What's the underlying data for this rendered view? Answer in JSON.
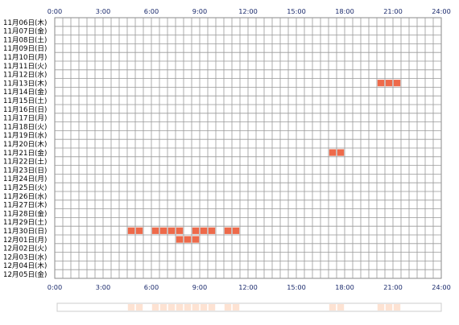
{
  "chart_data": {
    "type": "heatmap",
    "x_ticks": [
      "0:00",
      "3:00",
      "6:00",
      "9:00",
      "12:00",
      "15:00",
      "18:00",
      "21:00",
      "24:00"
    ],
    "x_range_hours": [
      0,
      24
    ],
    "grid": true,
    "y_labels": [
      "11月06日(木)",
      "11月07日(金)",
      "11月08日(土)",
      "11月09日(日)",
      "11月10日(月)",
      "11月11日(火)",
      "11月12日(水)",
      "11月13日(木)",
      "11月14日(金)",
      "11月15日(土)",
      "11月16日(日)",
      "11月17日(月)",
      "11月18日(火)",
      "11月19日(水)",
      "11月20日(木)",
      "11月21日(金)",
      "11月22日(土)",
      "11月23日(日)",
      "11月24日(月)",
      "11月25日(火)",
      "11月26日(水)",
      "11月27日(木)",
      "11月28日(金)",
      "11月29日(土)",
      "11月30日(日)",
      "12月01日(月)",
      "12月02日(火)",
      "12月03日(水)",
      "12月04日(木)",
      "12月05日(金)"
    ],
    "activity": [
      {
        "day": "11月13日(木)",
        "start": 20.0,
        "end": 20.5
      },
      {
        "day": "11月13日(木)",
        "start": 20.5,
        "end": 21.0
      },
      {
        "day": "11月13日(木)",
        "start": 21.0,
        "end": 21.5
      },
      {
        "day": "11月21日(金)",
        "start": 17.0,
        "end": 17.5
      },
      {
        "day": "11月21日(金)",
        "start": 17.5,
        "end": 18.0
      },
      {
        "day": "11月30日(日)",
        "start": 4.5,
        "end": 5.0
      },
      {
        "day": "11月30日(日)",
        "start": 5.0,
        "end": 5.5
      },
      {
        "day": "11月30日(日)",
        "start": 6.0,
        "end": 6.5
      },
      {
        "day": "11月30日(日)",
        "start": 6.5,
        "end": 7.0
      },
      {
        "day": "11月30日(日)",
        "start": 7.0,
        "end": 7.5
      },
      {
        "day": "11月30日(日)",
        "start": 7.5,
        "end": 8.0
      },
      {
        "day": "11月30日(日)",
        "start": 8.5,
        "end": 9.0
      },
      {
        "day": "11月30日(日)",
        "start": 9.0,
        "end": 9.5
      },
      {
        "day": "11月30日(日)",
        "start": 9.5,
        "end": 10.0
      },
      {
        "day": "11月30日(日)",
        "start": 10.5,
        "end": 11.0
      },
      {
        "day": "11月30日(日)",
        "start": 11.0,
        "end": 11.5
      },
      {
        "day": "12月01日(月)",
        "start": 7.5,
        "end": 8.0
      },
      {
        "day": "12月01日(月)",
        "start": 8.0,
        "end": 8.5
      },
      {
        "day": "12月01日(月)",
        "start": 8.5,
        "end": 9.0
      }
    ],
    "colors": {
      "mark": "#ee6a4a",
      "summary_mark": "#fde2d2",
      "grid": "#999999",
      "border": "#888888",
      "x_tick_text": "#1a2a6c",
      "y_label_text": "#000000"
    }
  }
}
